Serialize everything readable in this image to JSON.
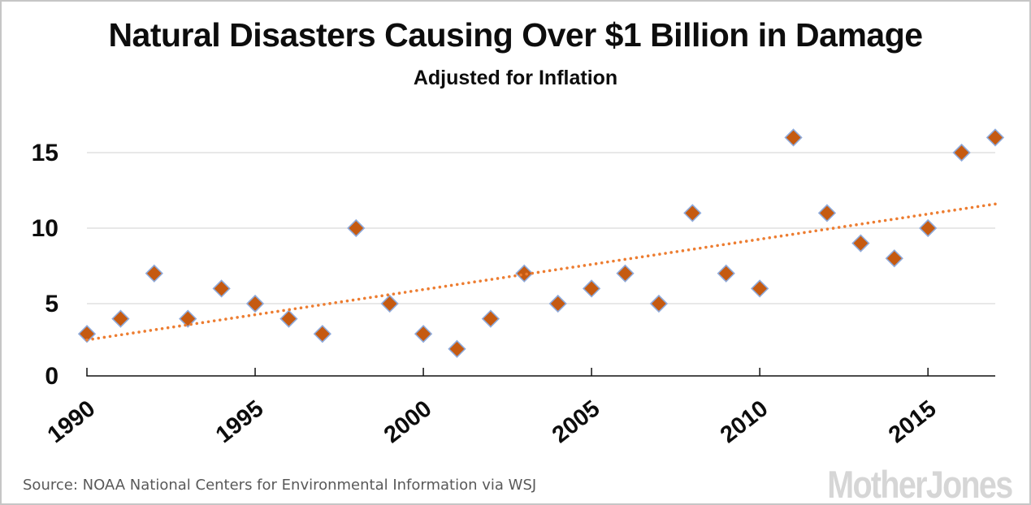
{
  "title": "Natural Disasters Causing Over $1 Billion in Damage",
  "subtitle": "Adjusted for Inflation",
  "source": "Source: NOAA National Centers for Environmental Information via WSJ",
  "logo": "MotherJones",
  "chart_data": {
    "type": "scatter",
    "title": "Natural Disasters Causing Over $1 Billion in Damage",
    "subtitle": "Adjusted for Inflation",
    "xlabel": "",
    "ylabel": "",
    "x": [
      1990,
      1991,
      1992,
      1993,
      1994,
      1995,
      1996,
      1997,
      1998,
      1999,
      2000,
      2001,
      2002,
      2003,
      2004,
      2005,
      2006,
      2007,
      2008,
      2009,
      2010,
      2011,
      2012,
      2013,
      2014,
      2015,
      2016,
      2017
    ],
    "values": [
      3,
      4,
      7,
      4,
      6,
      5,
      4,
      3,
      10,
      5,
      3,
      2,
      4,
      7,
      5,
      6,
      7,
      5,
      11,
      7,
      6,
      16,
      11,
      9,
      8,
      10,
      15,
      16
    ],
    "marker": "diamond",
    "xticks": [
      1990,
      1995,
      2000,
      2005,
      2010,
      2015
    ],
    "yticks": [
      0,
      5,
      10,
      15
    ],
    "xlim": [
      1990,
      2017
    ],
    "ylim": [
      0,
      16.5
    ],
    "grid": "horizontal",
    "legend": "none",
    "trendline": {
      "style": "dotted",
      "start": {
        "x": 1990,
        "y": 2.6
      },
      "end": {
        "x": 2017,
        "y": 11.6
      }
    },
    "colors": {
      "marker_fill": "#C55A11",
      "marker_border": "#8EAADB",
      "trend": "#ED7D31",
      "gridline": "#D9D9D9",
      "axis": "#111111",
      "text": "#0d0d0d",
      "source_text": "#595959",
      "logo_text": "#d6d6d6"
    }
  }
}
